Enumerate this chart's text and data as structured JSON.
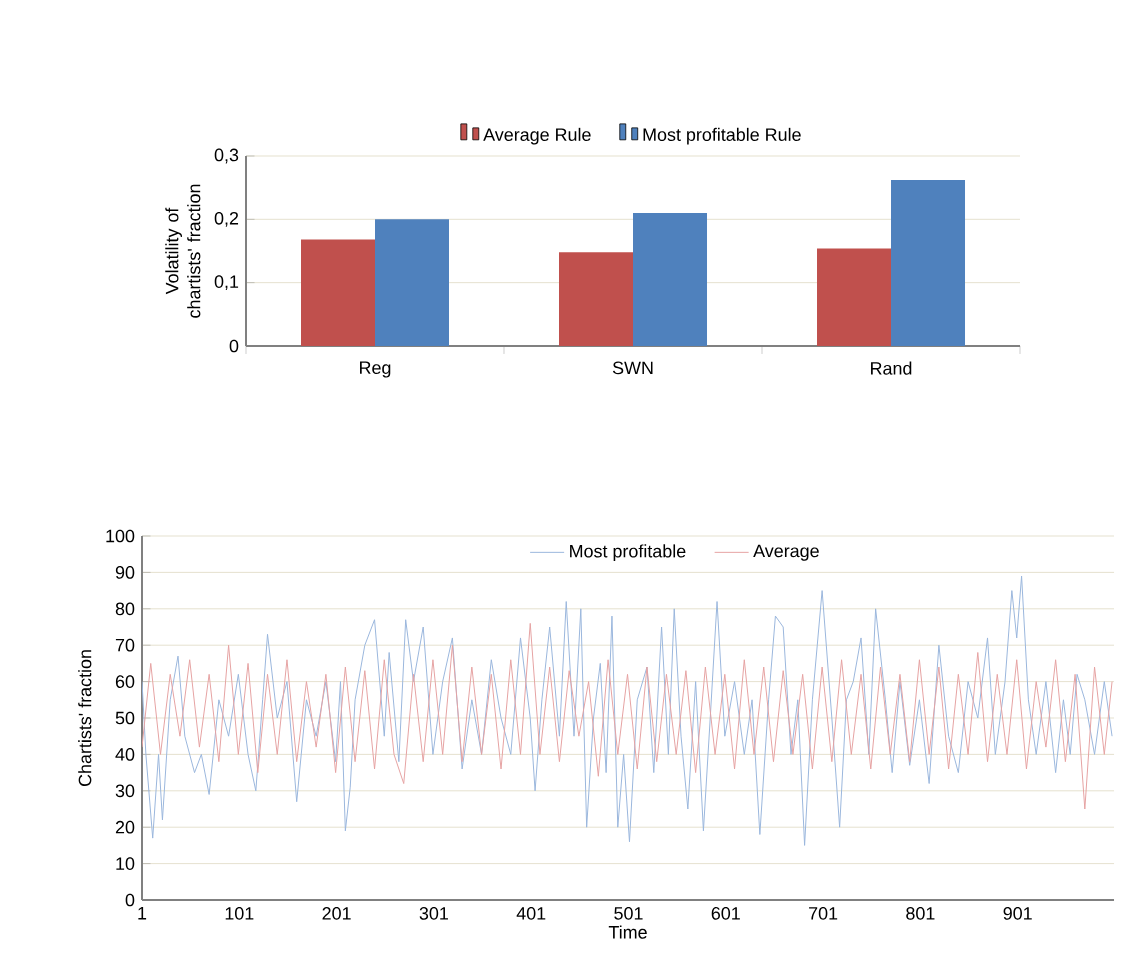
{
  "chart_data": [
    {
      "type": "bar",
      "categories": [
        "Reg",
        "SWN",
        "Rand"
      ],
      "ylabel": "Volatility of chartists' fraction",
      "series": [
        {
          "name": "Average Rule",
          "color": "#c0504d",
          "values": [
            0.168,
            0.148,
            0.154
          ]
        },
        {
          "name": "Most profitable Rule",
          "color": "#4f81bd",
          "values": [
            0.2,
            0.21,
            0.262
          ]
        }
      ],
      "ylim": [
        0,
        0.3
      ],
      "yticks": [
        0,
        {
          "value": 0.1,
          "label": "0,1"
        },
        {
          "value": 0.2,
          "label": "0,2"
        },
        {
          "value": 0.3,
          "label": "0,3"
        }
      ],
      "grid": "y",
      "legend": "top"
    },
    {
      "type": "line",
      "xlabel": "Time",
      "ylabel": "Chartists' fraction",
      "series": [
        {
          "name": "Most profitable",
          "color": "#9bb7dd",
          "x": [
            1,
            5,
            12,
            18,
            22,
            30,
            38,
            45,
            55,
            62,
            70,
            80,
            90,
            100,
            110,
            118,
            125,
            130,
            140,
            150,
            160,
            170,
            180,
            190,
            200,
            205,
            210,
            215,
            220,
            230,
            240,
            250,
            255,
            265,
            272,
            280,
            290,
            300,
            310,
            320,
            330,
            340,
            350,
            360,
            370,
            380,
            390,
            400,
            405,
            412,
            420,
            430,
            437,
            445,
            452,
            458,
            465,
            472,
            478,
            484,
            490,
            496,
            502,
            510,
            520,
            527,
            535,
            542,
            548,
            555,
            562,
            570,
            578,
            585,
            592,
            600,
            610,
            620,
            628,
            636,
            645,
            652,
            660,
            668,
            675,
            682,
            690,
            700,
            710,
            718,
            725,
            732,
            740,
            748,
            755,
            765,
            772,
            780,
            790,
            800,
            810,
            820,
            830,
            840,
            850,
            860,
            870,
            878,
            888,
            895,
            900,
            905,
            912,
            920,
            930,
            940,
            948,
            955,
            962,
            970,
            980,
            990,
            998
          ],
          "values": [
            60,
            40,
            17,
            40,
            22,
            55,
            67,
            45,
            35,
            40,
            29,
            55,
            45,
            62,
            40,
            30,
            55,
            73,
            50,
            60,
            27,
            55,
            45,
            60,
            38,
            60,
            19,
            31,
            55,
            70,
            77,
            45,
            68,
            38,
            77,
            60,
            75,
            40,
            60,
            72,
            36,
            55,
            40,
            66,
            50,
            40,
            72,
            50,
            30,
            55,
            75,
            45,
            82,
            45,
            80,
            20,
            50,
            65,
            35,
            78,
            20,
            40,
            16,
            55,
            64,
            35,
            75,
            40,
            80,
            45,
            25,
            60,
            19,
            50,
            82,
            45,
            60,
            40,
            55,
            18,
            55,
            78,
            75,
            40,
            55,
            15,
            55,
            85,
            50,
            20,
            55,
            60,
            72,
            40,
            80,
            55,
            35,
            60,
            37,
            55,
            32,
            70,
            45,
            35,
            60,
            50,
            72,
            40,
            60,
            85,
            72,
            89,
            55,
            40,
            60,
            35,
            55,
            40,
            62,
            55,
            40,
            60,
            45
          ]
        },
        {
          "name": "Average",
          "color": "#e6a3a3",
          "x": [
            1,
            10,
            20,
            30,
            40,
            50,
            60,
            70,
            80,
            90,
            100,
            110,
            120,
            130,
            140,
            150,
            160,
            170,
            180,
            190,
            200,
            210,
            220,
            230,
            240,
            250,
            260,
            270,
            280,
            290,
            300,
            310,
            320,
            330,
            340,
            350,
            360,
            370,
            380,
            390,
            400,
            410,
            420,
            430,
            440,
            450,
            460,
            470,
            480,
            490,
            500,
            510,
            520,
            530,
            540,
            550,
            560,
            570,
            580,
            590,
            600,
            610,
            620,
            630,
            640,
            650,
            660,
            670,
            680,
            690,
            700,
            710,
            720,
            730,
            740,
            750,
            760,
            770,
            780,
            790,
            800,
            810,
            820,
            830,
            840,
            850,
            860,
            870,
            880,
            890,
            900,
            910,
            920,
            930,
            940,
            950,
            960,
            970,
            980,
            990,
            998
          ],
          "values": [
            42,
            65,
            40,
            62,
            45,
            66,
            42,
            62,
            38,
            70,
            40,
            65,
            35,
            62,
            40,
            66,
            38,
            60,
            42,
            62,
            35,
            64,
            38,
            63,
            36,
            66,
            40,
            32,
            62,
            38,
            66,
            40,
            70,
            38,
            64,
            40,
            62,
            36,
            66,
            40,
            76,
            40,
            64,
            38,
            63,
            45,
            60,
            34,
            66,
            40,
            62,
            36,
            64,
            38,
            62,
            40,
            63,
            35,
            64,
            40,
            62,
            36,
            66,
            40,
            64,
            38,
            63,
            40,
            62,
            36,
            64,
            38,
            66,
            40,
            62,
            36,
            64,
            40,
            62,
            38,
            66,
            40,
            64,
            36,
            62,
            40,
            68,
            38,
            62,
            40,
            66,
            36,
            60,
            42,
            66,
            38,
            62,
            25,
            64,
            40,
            60
          ]
        }
      ],
      "xlim": [
        1,
        1000
      ],
      "xticks": [
        1,
        101,
        201,
        301,
        401,
        501,
        601,
        701,
        801,
        901
      ],
      "ylim": [
        0,
        100
      ],
      "yticks": [
        0,
        10,
        20,
        30,
        40,
        50,
        60,
        70,
        80,
        90,
        100
      ],
      "grid": "y",
      "legend": "top",
      "marker": "none",
      "line_style": "solid"
    }
  ]
}
